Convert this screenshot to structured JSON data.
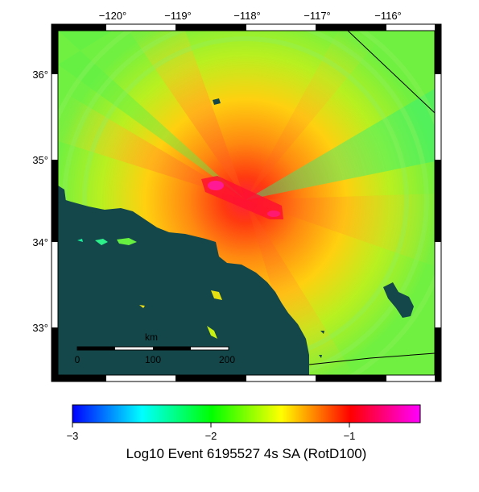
{
  "map": {
    "lon_ticks": [
      "−120°",
      "−119°",
      "−118°",
      "−117°",
      "−116°"
    ],
    "lat_ticks": [
      "36°",
      "35°",
      "34°",
      "33°"
    ],
    "scale_bar": {
      "unit": "km",
      "labels": [
        "0",
        "100",
        "200"
      ]
    },
    "colors": {
      "ocean": "#13474a",
      "fault": "#000000",
      "frame": "#000000"
    }
  },
  "colorbar": {
    "tick_labels": [
      "−3",
      "−2",
      "−1"
    ],
    "title": "Log10 Event 6195527 4s SA (RotD100)",
    "colors": [
      "#0000ff",
      "#00ffff",
      "#00ff00",
      "#ffff00",
      "#ff0000",
      "#ff00ff"
    ]
  }
}
